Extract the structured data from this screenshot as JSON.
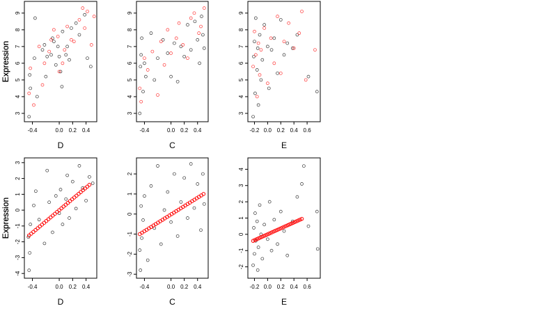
{
  "chart_data": [
    {
      "type": "scatter",
      "title": "",
      "xlabel": "D",
      "ylabel": "Expression",
      "xlim": [
        -0.52,
        0.56
      ],
      "ylim": [
        2.5,
        9.7
      ],
      "xticks": [
        "-0.4",
        "0.0",
        "0.2",
        "0.4"
      ],
      "yticks": [
        "3",
        "4",
        "5",
        "6",
        "7",
        "8",
        "9"
      ],
      "series": [
        {
          "color": "#000000",
          "marker": "open-circle",
          "points": [
            [
              -0.45,
              2.8
            ],
            [
              -0.44,
              5.3
            ],
            [
              -0.43,
              4.5
            ],
            [
              -0.37,
              6.3
            ],
            [
              -0.36,
              8.7
            ],
            [
              -0.33,
              4.0
            ],
            [
              -0.25,
              6.8
            ],
            [
              -0.22,
              7.1
            ],
            [
              -0.2,
              5.2
            ],
            [
              -0.18,
              6.4
            ],
            [
              -0.12,
              6.5
            ],
            [
              -0.1,
              7.5
            ],
            [
              -0.08,
              7.3
            ],
            [
              -0.05,
              5.9
            ],
            [
              -0.02,
              7.0
            ],
            [
              0.0,
              6.4
            ],
            [
              0.02,
              5.5
            ],
            [
              0.04,
              4.6
            ],
            [
              0.05,
              7.9
            ],
            [
              0.1,
              6.5
            ],
            [
              0.12,
              7.0
            ],
            [
              0.15,
              6.2
            ],
            [
              0.18,
              8.1
            ],
            [
              0.25,
              8.4
            ],
            [
              0.3,
              7.7
            ],
            [
              0.38,
              8.9
            ],
            [
              0.42,
              6.3
            ],
            [
              0.47,
              5.8
            ]
          ]
        },
        {
          "color": "#ff0000",
          "marker": "open-circle",
          "points": [
            [
              -0.45,
              4.2
            ],
            [
              -0.43,
              5.7
            ],
            [
              -0.38,
              3.5
            ],
            [
              -0.3,
              7.0
            ],
            [
              -0.25,
              4.7
            ],
            [
              -0.22,
              6.0
            ],
            [
              -0.15,
              6.7
            ],
            [
              -0.12,
              7.4
            ],
            [
              -0.08,
              8.0
            ],
            [
              -0.02,
              7.6
            ],
            [
              0.0,
              5.5
            ],
            [
              0.05,
              6.0
            ],
            [
              0.08,
              6.8
            ],
            [
              0.12,
              8.2
            ],
            [
              0.18,
              7.4
            ],
            [
              0.22,
              7.3
            ],
            [
              0.3,
              8.6
            ],
            [
              0.35,
              9.3
            ],
            [
              0.38,
              8.1
            ],
            [
              0.42,
              9.1
            ],
            [
              0.48,
              7.1
            ],
            [
              0.52,
              8.8
            ]
          ]
        }
      ]
    },
    {
      "type": "scatter",
      "title": "",
      "xlabel": "C",
      "ylabel": "Expression",
      "xlim": [
        -0.52,
        0.56
      ],
      "ylim": [
        2.5,
        9.7
      ],
      "xticks": [
        "-0.4",
        "0.0",
        "0.2",
        "0.4"
      ],
      "yticks": [
        "3",
        "4",
        "5",
        "6",
        "7",
        "8",
        "9"
      ],
      "series": [
        {
          "color": "#000000",
          "marker": "open-circle",
          "points": [
            [
              -0.47,
              3.0
            ],
            [
              -0.46,
              5.8
            ],
            [
              -0.45,
              6.5
            ],
            [
              -0.44,
              7.5
            ],
            [
              -0.42,
              4.3
            ],
            [
              -0.4,
              6.0
            ],
            [
              -0.38,
              5.2
            ],
            [
              -0.3,
              7.8
            ],
            [
              -0.25,
              5.0
            ],
            [
              -0.2,
              6.3
            ],
            [
              -0.12,
              7.4
            ],
            [
              -0.05,
              6.6
            ],
            [
              0.0,
              5.2
            ],
            [
              0.05,
              7.2
            ],
            [
              0.1,
              4.9
            ],
            [
              0.15,
              7.0
            ],
            [
              0.2,
              6.4
            ],
            [
              0.25,
              8.3
            ],
            [
              0.3,
              6.8
            ],
            [
              0.36,
              8.5
            ],
            [
              0.4,
              7.4
            ],
            [
              0.43,
              6.0
            ],
            [
              0.46,
              8.8
            ],
            [
              0.48,
              7.7
            ],
            [
              0.5,
              6.9
            ]
          ]
        },
        {
          "color": "#ff0000",
          "marker": "open-circle",
          "points": [
            [
              -0.47,
              4.5
            ],
            [
              -0.45,
              3.7
            ],
            [
              -0.4,
              6.3
            ],
            [
              -0.35,
              5.6
            ],
            [
              -0.28,
              6.7
            ],
            [
              -0.2,
              4.1
            ],
            [
              -0.15,
              7.3
            ],
            [
              -0.1,
              5.9
            ],
            [
              -0.05,
              8.0
            ],
            [
              0.0,
              6.6
            ],
            [
              0.08,
              7.5
            ],
            [
              0.12,
              8.4
            ],
            [
              0.18,
              7.1
            ],
            [
              0.25,
              6.3
            ],
            [
              0.3,
              8.7
            ],
            [
              0.35,
              9.0
            ],
            [
              0.42,
              7.8
            ],
            [
              0.45,
              8.2
            ],
            [
              0.5,
              9.3
            ]
          ]
        }
      ]
    },
    {
      "type": "scatter",
      "title": "",
      "xlabel": "E",
      "ylabel": "Expression",
      "xlim": [
        -0.3,
        0.8
      ],
      "ylim": [
        2.5,
        9.7
      ],
      "xticks": [
        "-0.2",
        "0.0",
        "0.2",
        "0.4",
        "0.6"
      ],
      "yticks": [
        "3",
        "4",
        "5",
        "6",
        "7",
        "8",
        "9"
      ],
      "series": [
        {
          "color": "#000000",
          "marker": "open-circle",
          "points": [
            [
              -0.22,
              2.8
            ],
            [
              -0.21,
              6.4
            ],
            [
              -0.2,
              7.3
            ],
            [
              -0.19,
              4.2
            ],
            [
              -0.18,
              8.7
            ],
            [
              -0.16,
              5.6
            ],
            [
              -0.15,
              6.9
            ],
            [
              -0.14,
              3.5
            ],
            [
              -0.12,
              7.7
            ],
            [
              -0.1,
              5.0
            ],
            [
              -0.08,
              6.2
            ],
            [
              -0.05,
              8.3
            ],
            [
              0.0,
              7.0
            ],
            [
              0.02,
              4.5
            ],
            [
              0.06,
              6.8
            ],
            [
              0.1,
              7.5
            ],
            [
              0.15,
              5.4
            ],
            [
              0.2,
              8.6
            ],
            [
              0.25,
              6.5
            ],
            [
              0.3,
              7.2
            ],
            [
              0.38,
              6.9
            ],
            [
              0.45,
              7.7
            ],
            [
              0.62,
              5.2
            ],
            [
              0.75,
              4.3
            ]
          ]
        },
        {
          "color": "#ff0000",
          "marker": "open-circle",
          "points": [
            [
              -0.22,
              5.8
            ],
            [
              -0.2,
              7.9
            ],
            [
              -0.18,
              6.5
            ],
            [
              -0.16,
              4.0
            ],
            [
              -0.14,
              7.2
            ],
            [
              -0.12,
              5.3
            ],
            [
              -0.1,
              6.8
            ],
            [
              -0.05,
              8.1
            ],
            [
              0.0,
              4.8
            ],
            [
              0.05,
              7.5
            ],
            [
              0.1,
              6.0
            ],
            [
              0.15,
              8.8
            ],
            [
              0.2,
              5.4
            ],
            [
              0.25,
              7.3
            ],
            [
              0.32,
              8.4
            ],
            [
              0.4,
              6.9
            ],
            [
              0.48,
              7.8
            ],
            [
              0.52,
              9.1
            ],
            [
              0.58,
              5.0
            ],
            [
              0.72,
              6.8
            ]
          ]
        }
      ]
    },
    {
      "type": "scatter",
      "title": "",
      "xlabel": "D",
      "ylabel": "Expression",
      "xlim": [
        -0.52,
        0.56
      ],
      "ylim": [
        -4.3,
        3.3
      ],
      "xticks": [
        "-0.4",
        "0.0",
        "0.2",
        "0.4"
      ],
      "yticks": [
        "-4",
        "-3",
        "-2",
        "-1",
        "0",
        "1",
        "2",
        "3"
      ],
      "series": [
        {
          "color": "#000000",
          "marker": "open-circle",
          "points": [
            [
              -0.46,
              -1.7
            ],
            [
              -0.45,
              -3.8
            ],
            [
              -0.44,
              -2.7
            ],
            [
              -0.43,
              -0.9
            ],
            [
              -0.38,
              0.3
            ],
            [
              -0.35,
              1.2
            ],
            [
              -0.3,
              -0.6
            ],
            [
              -0.22,
              -2.1
            ],
            [
              -0.18,
              2.5
            ],
            [
              -0.15,
              0.5
            ],
            [
              -0.1,
              -1.4
            ],
            [
              -0.05,
              0.9
            ],
            [
              0.0,
              -0.2
            ],
            [
              0.02,
              1.3
            ],
            [
              0.05,
              -0.9
            ],
            [
              0.1,
              0.7
            ],
            [
              0.12,
              2.2
            ],
            [
              0.15,
              -0.5
            ],
            [
              0.2,
              1.8
            ],
            [
              0.25,
              0.1
            ],
            [
              0.3,
              2.8
            ],
            [
              0.35,
              1.4
            ],
            [
              0.4,
              0.6
            ],
            [
              0.45,
              2.1
            ],
            [
              0.5,
              1.7
            ]
          ]
        }
      ],
      "fit": {
        "color": "#ff0000",
        "x": [
          -0.45,
          0.45
        ],
        "y": [
          -1.6,
          1.6
        ]
      }
    },
    {
      "type": "scatter",
      "title": "",
      "xlabel": "C",
      "ylabel": "Expression",
      "xlim": [
        -0.52,
        0.56
      ],
      "ylim": [
        -3.2,
        2.8
      ],
      "xticks": [
        "-0.4",
        "0.0",
        "0.2",
        "0.4"
      ],
      "yticks": [
        "-3",
        "-2",
        "-1",
        "0",
        "1",
        "2"
      ],
      "series": [
        {
          "color": "#000000",
          "marker": "open-circle",
          "points": [
            [
              -0.47,
              -1.8
            ],
            [
              -0.46,
              -2.8
            ],
            [
              -0.45,
              0.4
            ],
            [
              -0.44,
              -1.2
            ],
            [
              -0.42,
              -0.3
            ],
            [
              -0.4,
              0.9
            ],
            [
              -0.35,
              -2.3
            ],
            [
              -0.3,
              1.4
            ],
            [
              -0.25,
              -0.7
            ],
            [
              -0.2,
              2.4
            ],
            [
              -0.15,
              -1.5
            ],
            [
              -0.1,
              0.2
            ],
            [
              -0.05,
              1.1
            ],
            [
              0.0,
              -0.4
            ],
            [
              0.05,
              2.0
            ],
            [
              0.1,
              -1.1
            ],
            [
              0.15,
              0.6
            ],
            [
              0.2,
              1.8
            ],
            [
              0.25,
              -0.2
            ],
            [
              0.3,
              2.5
            ],
            [
              0.35,
              0.3
            ],
            [
              0.4,
              1.5
            ],
            [
              0.45,
              -0.8
            ],
            [
              0.48,
              2.0
            ],
            [
              0.5,
              0.5
            ]
          ]
        }
      ],
      "fit": {
        "color": "#ff0000",
        "x": [
          -0.47,
          0.49
        ],
        "y": [
          -1.0,
          1.0
        ]
      }
    },
    {
      "type": "scatter",
      "title": "",
      "xlabel": "E",
      "ylabel": "Expression",
      "xlim": [
        -0.3,
        0.8
      ],
      "ylim": [
        -2.7,
        4.7
      ],
      "xticks": [
        "-0.2",
        "0.0",
        "0.2",
        "0.4",
        "0.6"
      ],
      "yticks": [
        "-2",
        "-1",
        "0",
        "1",
        "2",
        "3",
        "4"
      ],
      "series": [
        {
          "color": "#000000",
          "marker": "open-circle",
          "points": [
            [
              -0.22,
              -1.9
            ],
            [
              -0.21,
              0.4
            ],
            [
              -0.2,
              -1.2
            ],
            [
              -0.19,
              1.3
            ],
            [
              -0.18,
              -0.4
            ],
            [
              -0.16,
              0.8
            ],
            [
              -0.15,
              -2.2
            ],
            [
              -0.14,
              -0.8
            ],
            [
              -0.12,
              1.8
            ],
            [
              -0.1,
              0.0
            ],
            [
              -0.08,
              -1.5
            ],
            [
              -0.05,
              0.6
            ],
            [
              0.0,
              -0.3
            ],
            [
              0.03,
              2.0
            ],
            [
              0.06,
              -1.0
            ],
            [
              0.1,
              0.9
            ],
            [
              0.15,
              -0.6
            ],
            [
              0.2,
              1.4
            ],
            [
              0.25,
              0.2
            ],
            [
              0.3,
              -1.3
            ],
            [
              0.38,
              0.8
            ],
            [
              0.45,
              2.3
            ],
            [
              0.52,
              3.1
            ],
            [
              0.55,
              4.2
            ],
            [
              0.62,
              0.5
            ],
            [
              0.75,
              1.4
            ],
            [
              0.76,
              -0.9
            ]
          ]
        }
      ],
      "fit": {
        "color": "#ff0000",
        "x": [
          -0.22,
          0.52
        ],
        "y": [
          -0.4,
          0.95
        ]
      }
    }
  ]
}
